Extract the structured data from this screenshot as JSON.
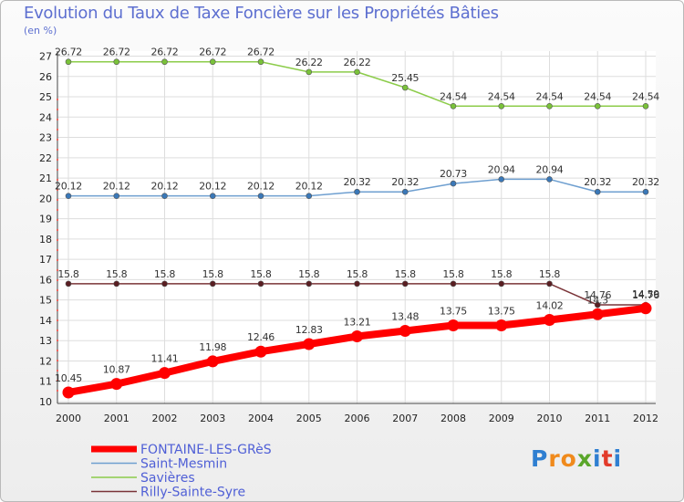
{
  "chart_data": {
    "type": "line",
    "title": "Evolution du Taux de Taxe Foncière sur les Propriétés Bâties",
    "unit_label": "(en %)",
    "x": [
      "2000",
      "2001",
      "2002",
      "2003",
      "2004",
      "2005",
      "2006",
      "2007",
      "2008",
      "2009",
      "2010",
      "2011",
      "2012"
    ],
    "ylim": [
      10,
      27
    ],
    "yticks": [
      10,
      11,
      12,
      13,
      14,
      15,
      16,
      17,
      18,
      19,
      20,
      21,
      22,
      23,
      24,
      25,
      26,
      27
    ],
    "grid": true,
    "series": [
      {
        "name": "Savières",
        "color": "#8ccc4a",
        "dot": "#7ac23a",
        "width": 1.5,
        "values": [
          26.72,
          26.72,
          26.72,
          26.72,
          26.72,
          26.22,
          26.22,
          25.45,
          24.54,
          24.54,
          24.54,
          24.54,
          24.54
        ]
      },
      {
        "name": "Saint-Mesmin",
        "color": "#6e9fd0",
        "dot": "#3a78b8",
        "width": 1.5,
        "values": [
          20.12,
          20.12,
          20.12,
          20.12,
          20.12,
          20.12,
          20.32,
          20.32,
          20.73,
          20.94,
          20.94,
          20.32,
          20.32
        ]
      },
      {
        "name": "Rilly-Sainte-Syre",
        "color": "#7a3438",
        "dot": "#5a1e22",
        "width": 1.5,
        "values": [
          15.8,
          15.8,
          15.8,
          15.8,
          15.8,
          15.8,
          15.8,
          15.8,
          15.8,
          15.8,
          15.8,
          14.76,
          14.76
        ]
      },
      {
        "name": "FONTAINE-LES-GRèS",
        "color": "#ff0000",
        "dot": "#ff0000",
        "width": 8,
        "values": [
          10.45,
          10.87,
          11.41,
          11.98,
          12.46,
          12.83,
          13.21,
          13.48,
          13.75,
          13.75,
          14.02,
          14.3,
          14.59
        ]
      }
    ],
    "legend": [
      "FONTAINE-LES-GRèS",
      "Saint-Mesmin",
      "Savières",
      "Rilly-Sainte-Syre"
    ],
    "legend_position": "bottom-left"
  },
  "branding": {
    "logo_text": "Proxiti",
    "letters": [
      "P",
      "r",
      "o",
      "x",
      "i",
      "t",
      "i"
    ]
  }
}
